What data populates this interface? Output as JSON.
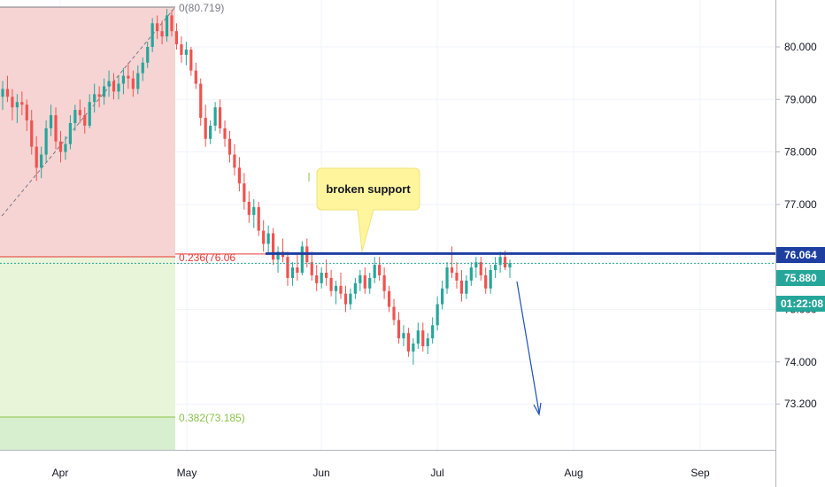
{
  "chart_data": {
    "type": "candlestick",
    "price_axis": {
      "ticks": [
        "80.000",
        "79.000",
        "78.000",
        "77.000",
        "76.000",
        "75.000",
        "74.000",
        "73.200"
      ],
      "tick_values": [
        80.0,
        79.0,
        78.0,
        77.0,
        76.0,
        75.0,
        74.0,
        73.2
      ],
      "range": [
        72.55,
        80.9
      ]
    },
    "time_axis": {
      "labels": [
        "Apr",
        "May",
        "Jun",
        "Jul",
        "Aug",
        "Sep"
      ]
    },
    "badges": {
      "level_price": "76.064",
      "last_price": "75.880",
      "countdown": "01:22:08"
    },
    "fib_levels": [
      {
        "label": "0(80.719)",
        "value": 80.719,
        "color": "#787b86"
      },
      {
        "label": "0.236(76.06",
        "value": 76.064,
        "color": "#e53935"
      },
      {
        "label": "0.382(73.185)",
        "value": 73.185,
        "color": "#8bc34a"
      }
    ],
    "annotation": {
      "text": "broken support"
    },
    "horizontal_line": {
      "value": 76.064,
      "color": "#1e3fa0"
    },
    "current_price_line": {
      "value": 75.88,
      "color": "#26a69a"
    },
    "series": [
      {
        "values": [
          [
            79.05,
            79.35,
            78.8,
            79.2
          ],
          [
            79.2,
            79.45,
            78.95,
            79.05
          ],
          [
            79.05,
            79.2,
            78.6,
            78.85
          ],
          [
            78.85,
            79.1,
            78.55,
            78.95
          ],
          [
            78.95,
            79.15,
            78.7,
            78.9
          ],
          [
            78.9,
            79.0,
            78.4,
            78.6
          ],
          [
            78.6,
            78.8,
            77.95,
            78.1
          ],
          [
            78.1,
            78.3,
            77.45,
            77.7
          ],
          [
            77.7,
            78.1,
            77.5,
            77.95
          ],
          [
            77.95,
            78.6,
            77.8,
            78.45
          ],
          [
            78.45,
            78.9,
            78.3,
            78.7
          ],
          [
            78.7,
            78.85,
            78.05,
            78.2
          ],
          [
            78.2,
            78.4,
            77.8,
            78.0
          ],
          [
            78.0,
            78.3,
            77.85,
            78.15
          ],
          [
            78.15,
            78.7,
            78.05,
            78.55
          ],
          [
            78.55,
            78.9,
            78.4,
            78.8
          ],
          [
            78.8,
            79.0,
            78.55,
            78.7
          ],
          [
            78.7,
            78.85,
            78.35,
            78.5
          ],
          [
            78.5,
            79.1,
            78.45,
            78.95
          ],
          [
            78.95,
            79.3,
            78.75,
            79.1
          ],
          [
            79.1,
            79.25,
            78.85,
            79.05
          ],
          [
            79.05,
            79.4,
            78.9,
            79.25
          ],
          [
            79.25,
            79.55,
            79.05,
            79.35
          ],
          [
            79.35,
            79.5,
            79.0,
            79.15
          ],
          [
            79.15,
            79.45,
            79.0,
            79.3
          ],
          [
            79.3,
            79.6,
            79.1,
            79.45
          ],
          [
            79.45,
            79.7,
            79.2,
            79.4
          ],
          [
            79.4,
            79.55,
            79.05,
            79.2
          ],
          [
            79.2,
            79.65,
            79.1,
            79.5
          ],
          [
            79.5,
            79.8,
            79.35,
            79.7
          ],
          [
            79.7,
            80.1,
            79.6,
            80.0
          ],
          [
            80.0,
            80.55,
            79.9,
            80.45
          ],
          [
            80.45,
            80.6,
            80.15,
            80.3
          ],
          [
            80.3,
            80.5,
            80.05,
            80.2
          ],
          [
            80.2,
            80.72,
            80.1,
            80.6
          ],
          [
            80.6,
            80.7,
            80.2,
            80.3
          ],
          [
            80.3,
            80.45,
            79.95,
            80.05
          ],
          [
            80.05,
            80.2,
            79.7,
            79.85
          ],
          [
            79.85,
            80.1,
            79.65,
            79.95
          ],
          [
            79.95,
            80.0,
            79.45,
            79.55
          ],
          [
            79.55,
            79.7,
            79.2,
            79.3
          ],
          [
            79.3,
            79.4,
            78.5,
            78.65
          ],
          [
            78.65,
            78.9,
            78.1,
            78.25
          ],
          [
            78.25,
            78.6,
            78.15,
            78.5
          ],
          [
            78.5,
            78.95,
            78.4,
            78.85
          ],
          [
            78.85,
            79.0,
            78.35,
            78.45
          ],
          [
            78.45,
            78.6,
            78.1,
            78.25
          ],
          [
            78.25,
            78.4,
            77.8,
            77.95
          ],
          [
            77.95,
            78.15,
            77.55,
            77.7
          ],
          [
            77.7,
            77.9,
            77.25,
            77.4
          ],
          [
            77.4,
            77.6,
            76.9,
            77.05
          ],
          [
            77.05,
            77.25,
            76.65,
            76.8
          ],
          [
            76.8,
            77.1,
            76.55,
            76.95
          ],
          [
            76.95,
            77.05,
            76.4,
            76.5
          ],
          [
            76.5,
            76.7,
            76.1,
            76.25
          ],
          [
            76.25,
            76.6,
            76.05,
            76.45
          ],
          [
            76.45,
            76.55,
            75.85,
            75.95
          ],
          [
            75.95,
            76.2,
            75.7,
            76.1
          ],
          [
            76.1,
            76.35,
            75.9,
            76.0
          ],
          [
            76.0,
            76.1,
            75.45,
            75.6
          ],
          [
            75.6,
            75.9,
            75.45,
            75.8
          ],
          [
            75.8,
            76.05,
            75.55,
            75.7
          ],
          [
            75.7,
            76.3,
            75.65,
            76.2
          ],
          [
            76.2,
            76.35,
            75.8,
            75.9
          ],
          [
            75.9,
            76.1,
            75.55,
            75.65
          ],
          [
            75.65,
            75.85,
            75.35,
            75.5
          ],
          [
            75.5,
            75.8,
            75.4,
            75.7
          ],
          [
            75.7,
            75.95,
            75.45,
            75.6
          ],
          [
            75.6,
            75.75,
            75.25,
            75.35
          ],
          [
            75.35,
            75.55,
            75.1,
            75.45
          ],
          [
            75.45,
            75.7,
            75.2,
            75.3
          ],
          [
            75.3,
            75.45,
            74.95,
            75.1
          ],
          [
            75.1,
            75.4,
            75.0,
            75.3
          ],
          [
            75.3,
            75.6,
            75.2,
            75.5
          ],
          [
            75.5,
            75.75,
            75.35,
            75.65
          ],
          [
            75.65,
            75.8,
            75.3,
            75.4
          ],
          [
            75.4,
            75.7,
            75.3,
            75.6
          ],
          [
            75.6,
            76.0,
            75.5,
            75.85
          ],
          [
            75.85,
            76.0,
            75.55,
            75.65
          ],
          [
            75.65,
            75.8,
            75.2,
            75.35
          ],
          [
            75.35,
            75.45,
            74.95,
            75.05
          ],
          [
            75.05,
            75.2,
            74.7,
            74.8
          ],
          [
            74.8,
            74.95,
            74.35,
            74.45
          ],
          [
            74.45,
            74.7,
            74.3,
            74.55
          ],
          [
            74.55,
            74.65,
            74.1,
            74.2
          ],
          [
            74.2,
            74.45,
            73.95,
            74.35
          ],
          [
            74.35,
            74.75,
            74.25,
            74.6
          ],
          [
            74.6,
            74.75,
            74.2,
            74.3
          ],
          [
            74.3,
            74.55,
            74.15,
            74.45
          ],
          [
            74.45,
            74.85,
            74.35,
            74.7
          ],
          [
            74.7,
            75.25,
            74.6,
            75.1
          ],
          [
            75.1,
            75.55,
            75.0,
            75.4
          ],
          [
            75.4,
            75.9,
            75.3,
            75.8
          ],
          [
            75.8,
            76.2,
            75.6,
            75.7
          ],
          [
            75.7,
            75.9,
            75.4,
            75.55
          ],
          [
            75.55,
            75.75,
            75.15,
            75.3
          ],
          [
            75.3,
            75.65,
            75.2,
            75.55
          ],
          [
            75.55,
            75.9,
            75.45,
            75.8
          ],
          [
            75.8,
            76.0,
            75.6,
            75.9
          ],
          [
            75.9,
            76.0,
            75.55,
            75.65
          ],
          [
            75.65,
            75.8,
            75.3,
            75.4
          ],
          [
            75.4,
            75.85,
            75.3,
            75.75
          ],
          [
            75.75,
            76.0,
            75.6,
            75.85
          ],
          [
            75.85,
            76.1,
            75.7,
            76.0
          ],
          [
            76.0,
            76.12,
            75.75,
            75.8
          ],
          [
            75.8,
            75.95,
            75.6,
            75.88
          ]
        ]
      }
    ]
  }
}
